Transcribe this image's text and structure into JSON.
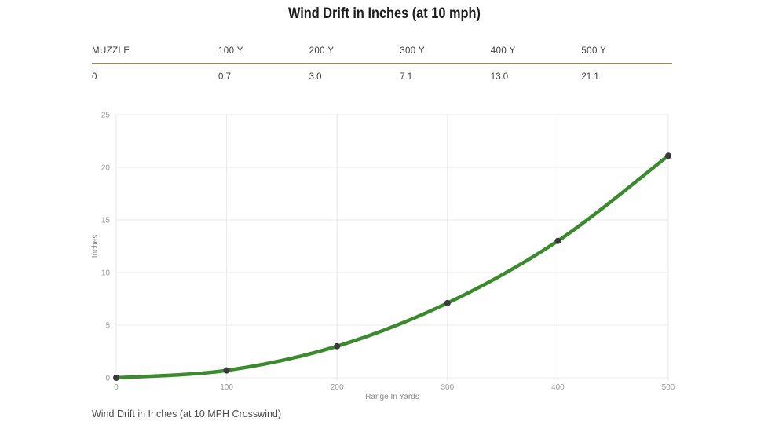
{
  "page": {
    "title": "Wind Drift in Inches (at 10 mph)",
    "caption": "Wind Drift in Inches (at 10 MPH Crosswind)"
  },
  "table": {
    "headers": [
      "MUZZLE",
      "100 Y",
      "200 Y",
      "300 Y",
      "400 Y",
      "500 Y"
    ],
    "values": [
      "0",
      "0.7",
      "3.0",
      "7.1",
      "13.0",
      "21.1"
    ]
  },
  "chart_data": {
    "type": "line",
    "x": [
      0,
      100,
      200,
      300,
      400,
      500
    ],
    "series": [
      {
        "name": "Wind Drift",
        "values": [
          0,
          0.7,
          3.0,
          7.1,
          13.0,
          21.1
        ]
      }
    ],
    "title": "",
    "xlabel": "Range In Yards",
    "ylabel": "Inches",
    "xlim": [
      0,
      500
    ],
    "ylim": [
      0,
      25
    ],
    "x_ticks": [
      0,
      100,
      200,
      300,
      400,
      500
    ],
    "y_ticks": [
      0,
      5,
      10,
      15,
      20,
      25
    ],
    "grid": true,
    "legend": "none",
    "line_color": "#3c8a2e",
    "marker_color": "#3a3a3a",
    "grid_color": "#e8e8e8",
    "tick_label_color": "#9b9b9b",
    "axis_title_color": "#8a8a8a"
  }
}
